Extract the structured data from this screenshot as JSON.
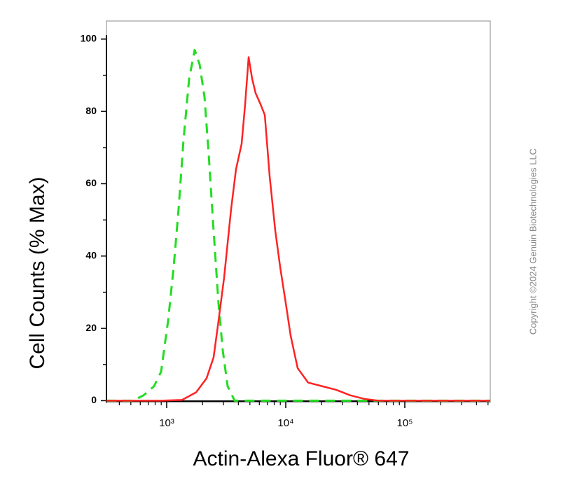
{
  "chart_data": {
    "type": "line",
    "xlabel": "Actin-Alexa Fluor® 647",
    "ylabel": "Cell Counts (% Max)",
    "copyright": "Copyright ©2024 Genuin Biotechnologies LLC",
    "xscale": "log",
    "xlim": [
      312,
      522000
    ],
    "ylim": [
      -0.5,
      105
    ],
    "xticks": [
      {
        "value": 1000,
        "label": "10³"
      },
      {
        "value": 10000,
        "label": "10⁴"
      },
      {
        "value": 100000,
        "label": "10⁵"
      }
    ],
    "xminor_ticks": [
      400,
      500,
      600,
      700,
      800,
      900,
      2000,
      3000,
      4000,
      5000,
      6000,
      7000,
      8000,
      9000,
      20000,
      30000,
      40000,
      50000,
      60000,
      70000,
      80000,
      90000,
      200000,
      300000,
      400000,
      500000
    ],
    "yticks": [
      0,
      20,
      40,
      60,
      80,
      100
    ],
    "yminor_ticks": [
      10,
      30,
      50,
      70,
      90
    ],
    "series": [
      {
        "color": "#22dd22",
        "dashed": true,
        "x": [
          312,
          522,
          640,
          783,
          897,
          1027,
          1145,
          1259,
          1384,
          1543,
          1719,
          1890,
          2078,
          2255,
          2478,
          2723,
          2955,
          3250,
          3723,
          522000
        ],
        "values": [
          0,
          0,
          1.5,
          4,
          8,
          22,
          37,
          53,
          72,
          89,
          97,
          93,
          84,
          68,
          47,
          27,
          14,
          4,
          0,
          0
        ]
      },
      {
        "color": "#ff2222",
        "dashed": false,
        "x": [
          312,
          898,
          1346,
          1766,
          2163,
          2478,
          2723,
          3035,
          3476,
          3822,
          4259,
          4560,
          4877,
          5224,
          5587,
          6138,
          6668,
          7328,
          8166,
          8974,
          10000,
          10990,
          12590,
          15420,
          20230,
          26550,
          34760,
          45600,
          59700,
          522000
        ],
        "values": [
          0,
          0,
          0.2,
          2.3,
          6.2,
          12,
          22,
          34,
          53,
          64,
          71,
          82,
          95,
          89,
          85,
          82,
          79,
          62,
          47,
          37,
          27,
          18,
          9,
          5,
          4,
          3,
          1.5,
          0.5,
          0,
          0
        ]
      }
    ]
  }
}
